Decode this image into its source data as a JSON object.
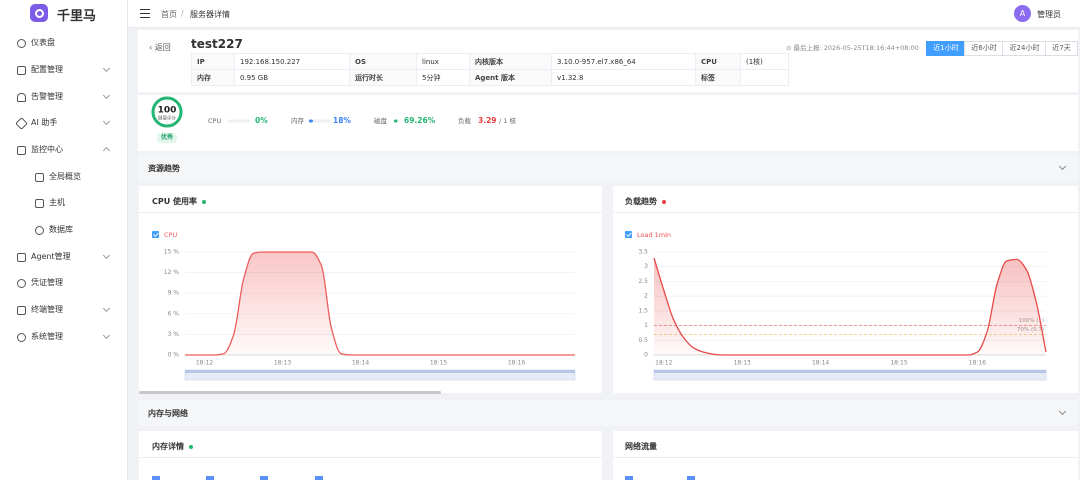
{
  "sidebar": {
    "brand": "千里马",
    "menu": [
      "仪表盘",
      "配置管理",
      "告警管理",
      "AI 助手",
      "监控中心",
      "全局概览",
      "主机",
      "数据库",
      "Agent管理",
      "凭证管理",
      "终端管理",
      "系统管理"
    ]
  },
  "header": {
    "breadcrumb": [
      "首页",
      "服务器详情"
    ],
    "avatar": "A",
    "user": "管理员"
  },
  "server": {
    "back": "返回",
    "name": "test227",
    "info": [
      [
        "IP",
        "192.168.150.227",
        "OS",
        "linux",
        "内核版本",
        "3.10.0-957.el7.x86_64",
        "CPU",
        "(1核)"
      ],
      [
        "内存",
        "0.95 GB",
        "运行时长",
        "5分钟",
        "Agent 版本",
        "v1.32.8",
        "标签"
      ]
    ],
    "last_report": "最后上报: 2026-05-25T18:16:44+08:00",
    "ranges": [
      "近1小时",
      "近6小时",
      "近24小时",
      "近7天"
    ]
  },
  "health": {
    "score": 100,
    "score_label": "健康评分",
    "rating": "优秀",
    "metrics": [
      {
        "name": "CPU",
        "value": 0,
        "label": "0%",
        "color": "#22b573"
      },
      {
        "name": "内存",
        "value": 18,
        "label": "18%",
        "color": "#3b82f6"
      },
      {
        "name": "磁盘",
        "value": 69.26,
        "label": "69.26%",
        "color": "#22b573"
      },
      {
        "name": "负载",
        "value": 3.29,
        "unit": "/ 1 核",
        "color": "#e53e3e"
      }
    ]
  },
  "sections": [
    "资源趋势",
    "内存与网络"
  ],
  "panels": [
    {
      "title": "内存详情",
      "status_color": "#22b573"
    },
    {
      "title": "网络流量"
    }
  ],
  "chart_data": [
    {
      "type": "line",
      "title": "CPU 使用率",
      "status_color": "#22b573",
      "grid": true,
      "area": true,
      "categories": [
        null,
        null,
        "18:12",
        null,
        null,
        null,
        null,
        null,
        null,
        null,
        "18:13",
        null,
        null,
        null,
        null,
        null,
        null,
        null,
        "18:14",
        null,
        null,
        null,
        null,
        null,
        null,
        null,
        "18:15",
        null,
        null,
        null,
        null,
        null,
        null,
        null,
        "18:16",
        null,
        null,
        null,
        null,
        null,
        null
      ],
      "series": [
        {
          "name": "CPU",
          "color": "#ee5d5d",
          "values": [
            0,
            0,
            0,
            0,
            0.2,
            3,
            11,
            14.8,
            15,
            15,
            15,
            15,
            15,
            15,
            13,
            4,
            0.2,
            0,
            0,
            0,
            0,
            0,
            0,
            0,
            0,
            0,
            0,
            0,
            0,
            0,
            0,
            0,
            0,
            0,
            0,
            0,
            0,
            0,
            0,
            0,
            0
          ]
        }
      ],
      "ylim": [
        0,
        15
      ],
      "yticks": [
        {
          "value": 0,
          "label": "0 %"
        },
        {
          "value": 3,
          "label": "3 %"
        },
        {
          "value": 6,
          "label": "6 %"
        },
        {
          "value": 9,
          "label": "9 %"
        },
        {
          "value": 12,
          "label": "12 %"
        },
        {
          "value": 15,
          "label": "15 %"
        }
      ]
    },
    {
      "type": "line",
      "title": "负载趋势",
      "status_color": "#e53e3e",
      "grid": true,
      "area": true,
      "categories": [
        null,
        "18:12",
        null,
        null,
        null,
        null,
        null,
        null,
        null,
        "18:13",
        null,
        null,
        null,
        null,
        null,
        null,
        null,
        "18:14",
        null,
        null,
        null,
        null,
        null,
        null,
        null,
        "18:15",
        null,
        null,
        null,
        null,
        null,
        null,
        null,
        "18:16",
        null,
        null,
        null,
        null,
        null,
        null,
        null
      ],
      "series": [
        {
          "name": "Load 1min",
          "color": "#e84a4a",
          "values": [
            3.3,
            2.2,
            1.2,
            0.6,
            0.25,
            0.1,
            0.03,
            0,
            0,
            0,
            0,
            0,
            0,
            0,
            0,
            0,
            0,
            0,
            0,
            0,
            0,
            0,
            0,
            0,
            0,
            0,
            0,
            0,
            0,
            0,
            0,
            0,
            0,
            0.1,
            0.8,
            2.4,
            3.2,
            3.25,
            2.9,
            1.8,
            0.1
          ]
        }
      ],
      "ylim": [
        0,
        3.5
      ],
      "yticks": [
        0,
        0.5,
        1,
        1.5,
        2,
        2.5,
        3,
        3.5
      ],
      "thresholds": [
        {
          "value": 1,
          "label": "100% (1)",
          "color": "#f08a8a"
        },
        {
          "value": 0.7,
          "label": "70% (0.7)",
          "color": "#f2c36b"
        }
      ]
    }
  ]
}
